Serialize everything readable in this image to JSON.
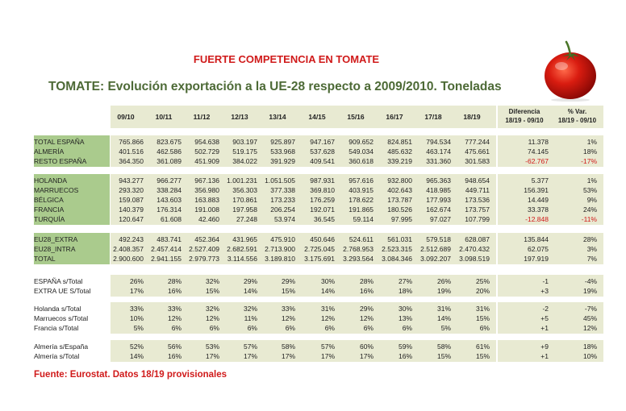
{
  "title": "FUERTE COMPETENCIA EN TOMATE",
  "subtitle": "TOMATE: Evolución exportación a la UE-28 respecto a 2009/2010. Toneladas",
  "source": "Fuente: Eurostat. Datos 18/19 provisionales",
  "colors": {
    "accent_red": "#d01a1a",
    "green_band": "#aacb8d",
    "light_band": "#e8ead2",
    "subtitle_green": "#4d6a36"
  },
  "icons": {
    "tomato": "tomato-image"
  },
  "table": {
    "columns": [
      "09/10",
      "10/11",
      "11/12",
      "12/13",
      "13/14",
      "14/15",
      "15/16",
      "16/17",
      "17/18",
      "18/19"
    ],
    "diff_header": [
      "Diferencia",
      "18/19 - 09/10"
    ],
    "var_header": [
      "% Var.",
      "18/19 - 09/10"
    ],
    "groups": [
      [
        {
          "label": "TOTAL ESPAÑA",
          "values": [
            "765.866",
            "823.675",
            "954.638",
            "903.197",
            "925.897",
            "947.167",
            "909.652",
            "824.851",
            "794.534",
            "777.244"
          ],
          "diff": "11.378",
          "pct": "1%"
        },
        {
          "label": "ALMERÍA",
          "values": [
            "401.516",
            "462.586",
            "502.729",
            "519.175",
            "533.968",
            "537.628",
            "549.034",
            "485.632",
            "463.174",
            "475.661"
          ],
          "diff": "74.145",
          "pct": "18%"
        },
        {
          "label": "RESTO ESPAÑA",
          "values": [
            "364.350",
            "361.089",
            "451.909",
            "384.022",
            "391.929",
            "409.541",
            "360.618",
            "339.219",
            "331.360",
            "301.583"
          ],
          "diff": "-62.767",
          "pct": "-17%"
        }
      ],
      [
        {
          "label": "HOLANDA",
          "values": [
            "943.277",
            "966.277",
            "967.136",
            "1.001.231",
            "1.051.505",
            "987.931",
            "957.616",
            "932.800",
            "965.363",
            "948.654"
          ],
          "diff": "5.377",
          "pct": "1%"
        },
        {
          "label": "MARRUECOS",
          "values": [
            "293.320",
            "338.284",
            "356.980",
            "356.303",
            "377.338",
            "369.810",
            "403.915",
            "402.643",
            "418.985",
            "449.711"
          ],
          "diff": "156.391",
          "pct": "53%"
        },
        {
          "label": "BÉLGICA",
          "values": [
            "159.087",
            "143.603",
            "163.883",
            "170.861",
            "173.233",
            "176.259",
            "178.622",
            "173.787",
            "177.993",
            "173.536"
          ],
          "diff": "14.449",
          "pct": "9%"
        },
        {
          "label": "FRANCIA",
          "values": [
            "140.379",
            "176.314",
            "191.008",
            "197.958",
            "206.254",
            "192.071",
            "191.865",
            "180.526",
            "162.674",
            "173.757"
          ],
          "diff": "33.378",
          "pct": "24%"
        },
        {
          "label": "TURQUÍA",
          "values": [
            "120.647",
            "61.608",
            "42.460",
            "27.248",
            "53.974",
            "36.545",
            "59.114",
            "97.995",
            "97.027",
            "107.799"
          ],
          "diff": "-12.848",
          "pct": "-11%"
        }
      ],
      [
        {
          "label": "EU28_EXTRA",
          "values": [
            "492.243",
            "483.741",
            "452.364",
            "431.965",
            "475.910",
            "450.646",
            "524.611",
            "561.031",
            "579.518",
            "628.087"
          ],
          "diff": "135.844",
          "pct": "28%"
        },
        {
          "label": "EU28_INTRA",
          "values": [
            "2.408.357",
            "2.457.414",
            "2.527.409",
            "2.682.591",
            "2.713.900",
            "2.725.045",
            "2.768.953",
            "2.523.315",
            "2.512.689",
            "2.470.432"
          ],
          "diff": "62.075",
          "pct": "3%"
        },
        {
          "label": "TOTAL",
          "values": [
            "2.900.600",
            "2.941.155",
            "2.979.773",
            "3.114.556",
            "3.189.810",
            "3.175.691",
            "3.293.564",
            "3.084.346",
            "3.092.207",
            "3.098.519"
          ],
          "diff": "197.919",
          "pct": "7%"
        }
      ],
      [
        {
          "label": "ESPAÑA s/Total",
          "values": [
            "26%",
            "28%",
            "32%",
            "29%",
            "29%",
            "30%",
            "28%",
            "27%",
            "26%",
            "25%"
          ],
          "diff": "-1",
          "pct": "-4%"
        },
        {
          "label": "EXTRA UE S/Total",
          "values": [
            "17%",
            "16%",
            "15%",
            "14%",
            "15%",
            "14%",
            "16%",
            "18%",
            "19%",
            "20%"
          ],
          "diff": "+3",
          "pct": "19%"
        }
      ],
      [
        {
          "label": "Holanda s/Total",
          "values": [
            "33%",
            "33%",
            "32%",
            "32%",
            "33%",
            "31%",
            "29%",
            "30%",
            "31%",
            "31%"
          ],
          "diff": "-2",
          "pct": "-7%"
        },
        {
          "label": "Marruecos s/Total",
          "values": [
            "10%",
            "12%",
            "12%",
            "11%",
            "12%",
            "12%",
            "12%",
            "13%",
            "14%",
            "15%"
          ],
          "diff": "+5",
          "pct": "45%"
        },
        {
          "label": "Francia s/Total",
          "values": [
            "5%",
            "6%",
            "6%",
            "6%",
            "6%",
            "6%",
            "6%",
            "6%",
            "5%",
            "6%"
          ],
          "diff": "+1",
          "pct": "12%"
        }
      ],
      [
        {
          "label": "Almería s/España",
          "values": [
            "52%",
            "56%",
            "53%",
            "57%",
            "58%",
            "57%",
            "60%",
            "59%",
            "58%",
            "61%"
          ],
          "diff": "+9",
          "pct": "18%"
        },
        {
          "label": "Almería s/Total",
          "values": [
            "14%",
            "16%",
            "17%",
            "17%",
            "17%",
            "17%",
            "17%",
            "16%",
            "15%",
            "15%"
          ],
          "diff": "+1",
          "pct": "10%"
        }
      ]
    ]
  }
}
